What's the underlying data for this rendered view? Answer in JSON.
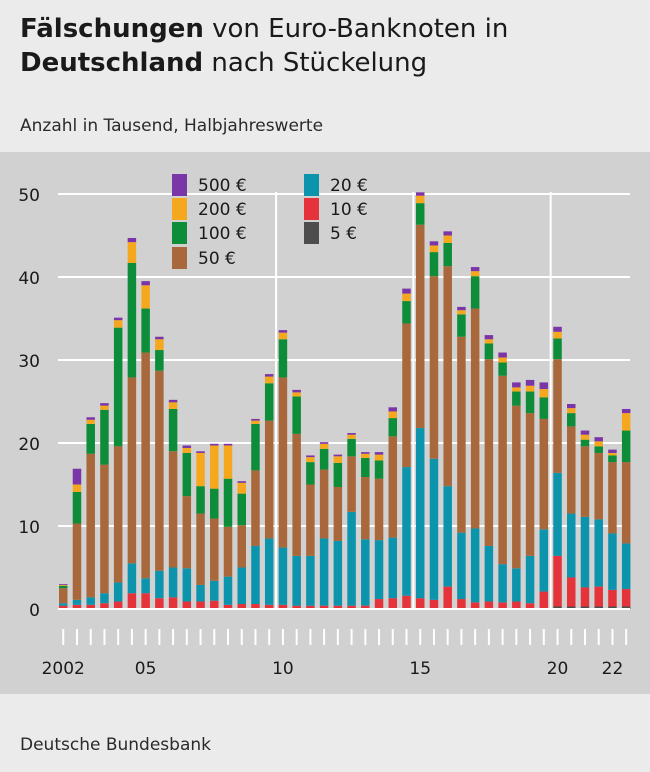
{
  "header": {
    "title_bold_1": "Fälschungen",
    "title_rest_1": " von Euro-Banknoten in",
    "title_bold_2": "Deutschland",
    "title_rest_2": " nach Stückelung",
    "subtitle": "Anzahl in Tausend, Halbjahreswerte"
  },
  "footer": {
    "source": "Deutsche Bundesbank"
  },
  "chart_data": {
    "type": "bar",
    "stacked": true,
    "title": "Fälschungen von Euro-Banknoten in Deutschland nach Stückelung",
    "subtitle": "Anzahl in Tausend, Halbjahreswerte",
    "ylim": [
      0,
      50
    ],
    "yticks": [
      0,
      10,
      20,
      30,
      40,
      50
    ],
    "grid": "horizontal",
    "legend_position": "top-left",
    "x_labels": [
      {
        "index": 0,
        "text": "2002"
      },
      {
        "index": 6,
        "text": "05"
      },
      {
        "index": 16,
        "text": "10"
      },
      {
        "index": 26,
        "text": "15"
      },
      {
        "index": 36,
        "text": "20"
      },
      {
        "index": 40,
        "text": "22"
      }
    ],
    "year_separators_after_index": [
      15,
      25,
      35
    ],
    "categories": [
      "2002 H1",
      "2002 H2",
      "2003 H1",
      "2003 H2",
      "2004 H1",
      "2004 H2",
      "2005 H1",
      "2005 H2",
      "2006 H1",
      "2006 H2",
      "2007 H1",
      "2007 H2",
      "2008 H1",
      "2008 H2",
      "2009 H1",
      "2009 H2",
      "2010 H1",
      "2010 H2",
      "2011 H1",
      "2011 H2",
      "2012 H1",
      "2012 H2",
      "2013 H1",
      "2013 H2",
      "2014 H1",
      "2014 H2",
      "2015 H1",
      "2015 H2",
      "2016 H1",
      "2016 H2",
      "2017 H1",
      "2017 H2",
      "2018 H1",
      "2018 H2",
      "2019 H1",
      "2019 H2",
      "2020 H1",
      "2020 H2",
      "2021 H1",
      "2021 H2",
      "2022 H1",
      "2022 H2"
    ],
    "series": [
      {
        "name": "5 €",
        "color": "#4d4d4d",
        "values": [
          0.1,
          0.1,
          0.1,
          0.1,
          0.1,
          0.1,
          0.1,
          0.1,
          0.1,
          0.1,
          0.1,
          0.1,
          0.1,
          0.1,
          0.1,
          0.1,
          0.1,
          0.1,
          0.1,
          0.1,
          0.1,
          0.1,
          0.1,
          0.1,
          0.1,
          0.1,
          0.1,
          0.1,
          0.1,
          0.1,
          0.1,
          0.1,
          0.1,
          0.1,
          0.1,
          0.1,
          0.3,
          0.3,
          0.3,
          0.3,
          0.3,
          0.3
        ]
      },
      {
        "name": "10 €",
        "color": "#e5333b",
        "values": [
          0.3,
          0.4,
          0.4,
          0.6,
          0.8,
          1.8,
          1.8,
          1.2,
          1.3,
          0.8,
          0.8,
          0.9,
          0.4,
          0.5,
          0.5,
          0.4,
          0.4,
          0.3,
          0.3,
          0.3,
          0.3,
          0.3,
          0.3,
          1.1,
          1.2,
          1.5,
          1.2,
          1.0,
          2.6,
          1.1,
          0.7,
          0.8,
          0.7,
          0.8,
          0.6,
          2.0,
          6.1,
          3.5,
          2.3,
          2.4,
          2.0,
          2.1
        ]
      },
      {
        "name": "20 €",
        "color": "#0d94ad",
        "values": [
          0.3,
          0.6,
          0.9,
          1.2,
          2.3,
          3.6,
          1.8,
          3.3,
          3.6,
          4.0,
          2.0,
          2.4,
          3.4,
          4.4,
          7.0,
          8.0,
          6.9,
          6.0,
          6.0,
          8.1,
          7.8,
          11.3,
          8.0,
          7.1,
          7.3,
          15.5,
          20.5,
          17.0,
          12.1,
          8.0,
          8.9,
          6.7,
          4.6,
          4.0,
          5.7,
          7.5,
          10.0,
          7.7,
          8.5,
          8.1,
          6.8,
          5.5
        ]
      },
      {
        "name": "50 €",
        "color": "#a8683b",
        "values": [
          1.8,
          9.2,
          17.3,
          15.5,
          16.4,
          22.4,
          27.2,
          24.1,
          14.0,
          8.7,
          8.6,
          7.5,
          6.0,
          5.1,
          9.1,
          14.2,
          20.5,
          14.7,
          8.6,
          8.3,
          6.5,
          6.7,
          7.5,
          7.4,
          12.2,
          17.3,
          24.5,
          22.0,
          26.5,
          23.6,
          26.5,
          22.5,
          22.7,
          19.6,
          17.2,
          13.3,
          13.7,
          10.5,
          8.5,
          8.0,
          8.6,
          9.8
        ]
      },
      {
        "name": "100 €",
        "color": "#0d8c3a",
        "values": [
          0.3,
          3.8,
          3.6,
          6.6,
          14.3,
          13.8,
          5.3,
          2.5,
          5.1,
          5.2,
          3.3,
          3.6,
          5.8,
          3.8,
          5.6,
          4.5,
          4.6,
          4.5,
          2.7,
          2.5,
          2.9,
          2.1,
          2.3,
          2.2,
          2.2,
          2.7,
          2.6,
          2.9,
          2.8,
          2.7,
          3.9,
          1.9,
          1.6,
          1.7,
          2.6,
          2.6,
          2.5,
          1.6,
          0.8,
          0.8,
          0.8,
          3.8
        ]
      },
      {
        "name": "200 €",
        "color": "#f5a81e",
        "values": [
          0.1,
          0.9,
          0.5,
          0.5,
          0.9,
          2.5,
          2.8,
          1.3,
          0.8,
          0.6,
          4.0,
          5.2,
          4.0,
          1.3,
          0.4,
          0.8,
          0.8,
          0.5,
          0.6,
          0.6,
          0.8,
          0.5,
          0.5,
          0.7,
          0.8,
          0.9,
          0.9,
          0.8,
          0.9,
          0.5,
          0.6,
          0.5,
          0.6,
          0.5,
          0.7,
          1.0,
          0.8,
          0.6,
          0.6,
          0.6,
          0.3,
          2.1
        ]
      },
      {
        "name": "500 €",
        "color": "#7a35a6",
        "values": [
          0.1,
          1.9,
          0.3,
          0.3,
          0.3,
          0.5,
          0.5,
          0.3,
          0.3,
          0.3,
          0.2,
          0.2,
          0.2,
          0.2,
          0.2,
          0.3,
          0.3,
          0.3,
          0.2,
          0.2,
          0.2,
          0.2,
          0.2,
          0.3,
          0.5,
          0.6,
          0.4,
          0.5,
          0.5,
          0.4,
          0.5,
          0.5,
          0.6,
          0.6,
          0.7,
          0.8,
          0.6,
          0.5,
          0.5,
          0.5,
          0.4,
          0.5
        ]
      }
    ],
    "legend": {
      "col1": [
        "500 €",
        "200 €",
        "100 €",
        "50 €"
      ],
      "col2": [
        "20 €",
        "10 €",
        "5 €"
      ]
    }
  }
}
